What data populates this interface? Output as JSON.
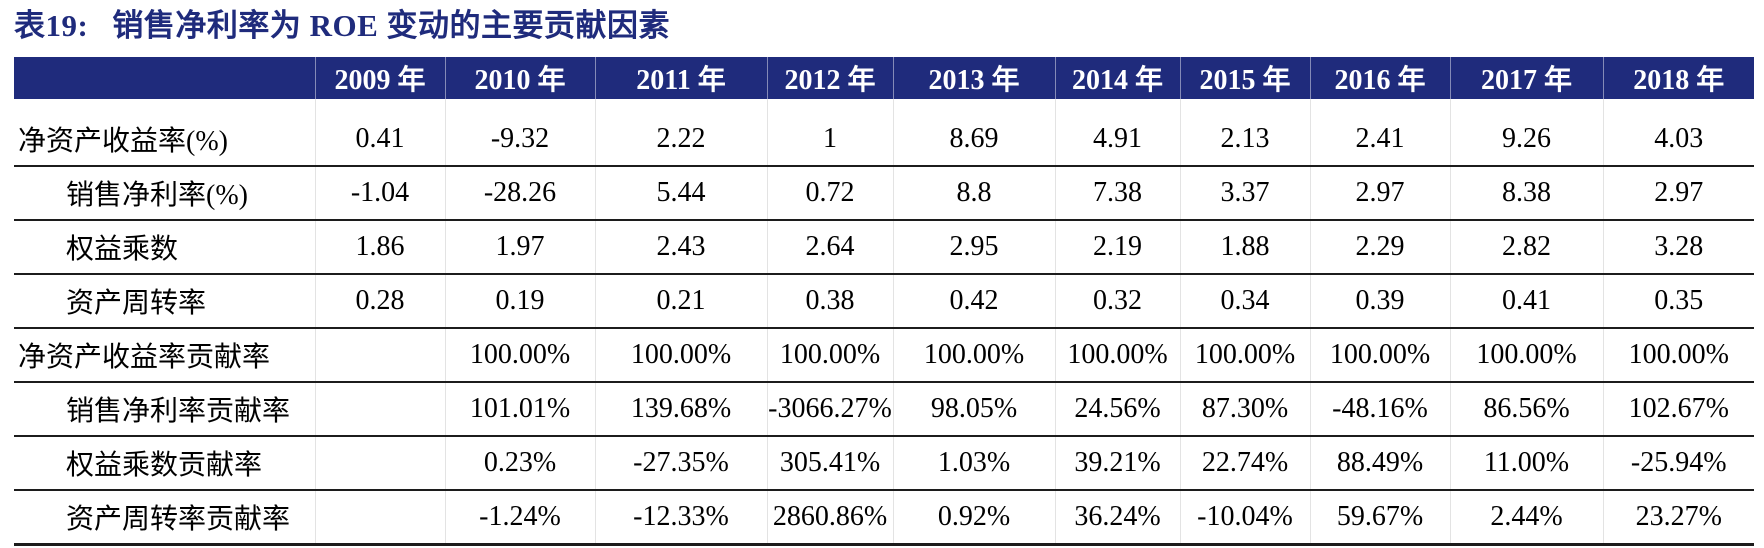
{
  "title": {
    "label": "表19:",
    "text": "销售净利率为 ROE 变动的主要贡献因素"
  },
  "colors": {
    "header_bg": "#1F2B7C",
    "title_text": "#1F2B7C",
    "body_text": "#000000",
    "row_border": "#1c1c1c"
  },
  "table": {
    "header": [
      "",
      "2009 年",
      "2010 年",
      "2011 年",
      "2012 年",
      "2013 年",
      "2014 年",
      "2015 年",
      "2016 年",
      "2017 年",
      "2018 年"
    ],
    "rows": [
      {
        "label": "净资产收益率(%)",
        "indent": false,
        "values": [
          "0.41",
          "-9.32",
          "2.22",
          "1",
          "8.69",
          "4.91",
          "2.13",
          "2.41",
          "9.26",
          "4.03"
        ]
      },
      {
        "label": "销售净利率(%)",
        "indent": true,
        "values": [
          "-1.04",
          "-28.26",
          "5.44",
          "0.72",
          "8.8",
          "7.38",
          "3.37",
          "2.97",
          "8.38",
          "2.97"
        ]
      },
      {
        "label": "权益乘数",
        "indent": true,
        "values": [
          "1.86",
          "1.97",
          "2.43",
          "2.64",
          "2.95",
          "2.19",
          "1.88",
          "2.29",
          "2.82",
          "3.28"
        ]
      },
      {
        "label": "资产周转率",
        "indent": true,
        "values": [
          "0.28",
          "0.19",
          "0.21",
          "0.38",
          "0.42",
          "0.32",
          "0.34",
          "0.39",
          "0.41",
          "0.35"
        ]
      },
      {
        "label": "净资产收益率贡献率",
        "indent": false,
        "values": [
          "",
          "100.00%",
          "100.00%",
          "100.00%",
          "100.00%",
          "100.00%",
          "100.00%",
          "100.00%",
          "100.00%",
          "100.00%"
        ]
      },
      {
        "label": "销售净利率贡献率",
        "indent": true,
        "values": [
          "",
          "101.01%",
          "139.68%",
          "-3066.27%",
          "98.05%",
          "24.56%",
          "87.30%",
          "-48.16%",
          "86.56%",
          "102.67%"
        ]
      },
      {
        "label": "权益乘数贡献率",
        "indent": true,
        "values": [
          "",
          "0.23%",
          "-27.35%",
          "305.41%",
          "1.03%",
          "39.21%",
          "22.74%",
          "88.49%",
          "11.00%",
          "-25.94%"
        ]
      },
      {
        "label": "资产周转率贡献率",
        "indent": true,
        "values": [
          "",
          "-1.24%",
          "-12.33%",
          "2860.86%",
          "0.92%",
          "36.24%",
          "-10.04%",
          "59.67%",
          "2.44%",
          "23.27%"
        ]
      }
    ]
  },
  "chart_data": {
    "type": "table",
    "title": "表19: 销售净利率为 ROE 变动的主要贡献因素",
    "categories": [
      "2009",
      "2010",
      "2011",
      "2012",
      "2013",
      "2014",
      "2015",
      "2016",
      "2017",
      "2018"
    ],
    "series": [
      {
        "name": "净资产收益率(%)",
        "values": [
          0.41,
          -9.32,
          2.22,
          1,
          8.69,
          4.91,
          2.13,
          2.41,
          9.26,
          4.03
        ]
      },
      {
        "name": "销售净利率(%)",
        "values": [
          -1.04,
          -28.26,
          5.44,
          0.72,
          8.8,
          7.38,
          3.37,
          2.97,
          8.38,
          2.97
        ]
      },
      {
        "name": "权益乘数",
        "values": [
          1.86,
          1.97,
          2.43,
          2.64,
          2.95,
          2.19,
          1.88,
          2.29,
          2.82,
          3.28
        ]
      },
      {
        "name": "资产周转率",
        "values": [
          0.28,
          0.19,
          0.21,
          0.38,
          0.42,
          0.32,
          0.34,
          0.39,
          0.41,
          0.35
        ]
      },
      {
        "name": "净资产收益率贡献率(%)",
        "values": [
          null,
          100.0,
          100.0,
          100.0,
          100.0,
          100.0,
          100.0,
          100.0,
          100.0,
          100.0
        ]
      },
      {
        "name": "销售净利率贡献率(%)",
        "values": [
          null,
          101.01,
          139.68,
          -3066.27,
          98.05,
          24.56,
          87.3,
          -48.16,
          86.56,
          102.67
        ]
      },
      {
        "name": "权益乘数贡献率(%)",
        "values": [
          null,
          0.23,
          -27.35,
          305.41,
          1.03,
          39.21,
          22.74,
          88.49,
          11.0,
          -25.94
        ]
      },
      {
        "name": "资产周转率贡献率(%)",
        "values": [
          null,
          -1.24,
          -12.33,
          2860.86,
          0.92,
          36.24,
          -10.04,
          59.67,
          2.44,
          23.27
        ]
      }
    ]
  }
}
